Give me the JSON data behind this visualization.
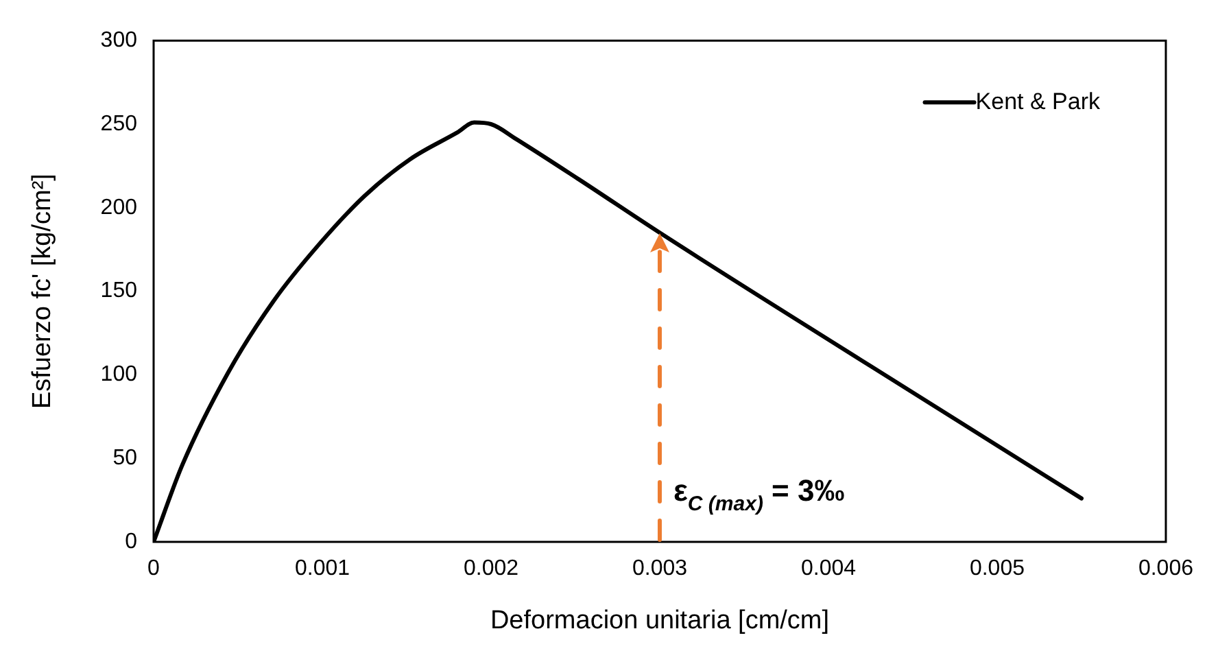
{
  "chart_data": {
    "type": "line",
    "xlabel": "Deformacion unitaria [cm/cm]",
    "ylabel": "Esfuerzo fc' [kg/cm²]",
    "series": [
      {
        "name": "Kent & Park",
        "color": "#000000",
        "x": [
          0,
          0.00017,
          0.00044,
          0.00071,
          0.00098,
          0.00125,
          0.00152,
          0.0018,
          0.0019,
          0.002,
          0.00215,
          0.00252,
          0.003,
          0.00419,
          0.0055
        ],
        "values": [
          0,
          46,
          101,
          144,
          178,
          207,
          229,
          245,
          251,
          250,
          241,
          217,
          185,
          109,
          26
        ]
      }
    ],
    "xlim": [
      0,
      0.006
    ],
    "xticks": [
      0,
      0.001,
      0.002,
      0.003,
      0.004,
      0.005,
      0.006
    ],
    "ylim": [
      0,
      300
    ],
    "yticks": [
      0,
      50,
      100,
      150,
      200,
      250,
      300
    ],
    "grid": false,
    "legend": "top right",
    "marker": "none",
    "line_style": "solid",
    "ref_lines": [
      {
        "axis": "x",
        "value": 0.003,
        "label": "ε$_{C (max)}$ = 3‰",
        "color": "#ed7d31",
        "line_style": "dashed"
      }
    ]
  }
}
